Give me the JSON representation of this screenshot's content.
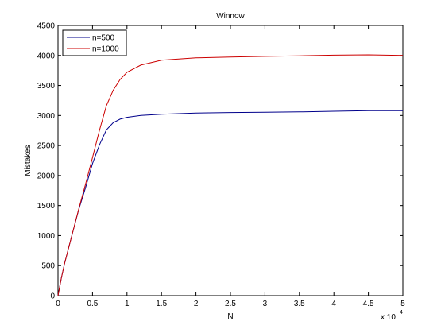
{
  "chart_data": {
    "type": "line",
    "title": "Winnow",
    "xlabel": "N",
    "ylabel": "Mistakes",
    "x_scale_label": "x 10",
    "x_scale_exponent": "4",
    "xlim": [
      0,
      5
    ],
    "ylim": [
      0,
      4500
    ],
    "xticks": [
      "0",
      "0.5",
      "1",
      "1.5",
      "2",
      "2.5",
      "3",
      "3.5",
      "4",
      "4.5",
      "5"
    ],
    "yticks": [
      "0",
      "500",
      "1000",
      "1500",
      "2000",
      "2500",
      "3000",
      "3500",
      "4000",
      "4500"
    ],
    "legend_position": "top-left",
    "grid": false,
    "series": [
      {
        "name": "n=500",
        "color": "#00008b",
        "x": [
          0,
          0.05,
          0.1,
          0.2,
          0.3,
          0.4,
          0.5,
          0.6,
          0.7,
          0.8,
          0.9,
          1.0,
          1.2,
          1.5,
          2.0,
          2.5,
          3.0,
          3.5,
          4.0,
          4.5,
          5.0
        ],
        "y": [
          0,
          300,
          560,
          1000,
          1430,
          1800,
          2200,
          2510,
          2760,
          2880,
          2940,
          2970,
          3000,
          3020,
          3040,
          3050,
          3055,
          3060,
          3070,
          3080,
          3080
        ]
      },
      {
        "name": "n=1000",
        "color": "#cc0000",
        "x": [
          0,
          0.05,
          0.1,
          0.2,
          0.3,
          0.4,
          0.5,
          0.6,
          0.7,
          0.8,
          0.9,
          1.0,
          1.2,
          1.5,
          2.0,
          2.5,
          3.0,
          3.5,
          4.0,
          4.5,
          5.0
        ],
        "y": [
          0,
          300,
          560,
          1000,
          1440,
          1860,
          2300,
          2750,
          3160,
          3420,
          3600,
          3720,
          3840,
          3920,
          3960,
          3975,
          3985,
          3995,
          4005,
          4010,
          4000
        ]
      }
    ]
  }
}
